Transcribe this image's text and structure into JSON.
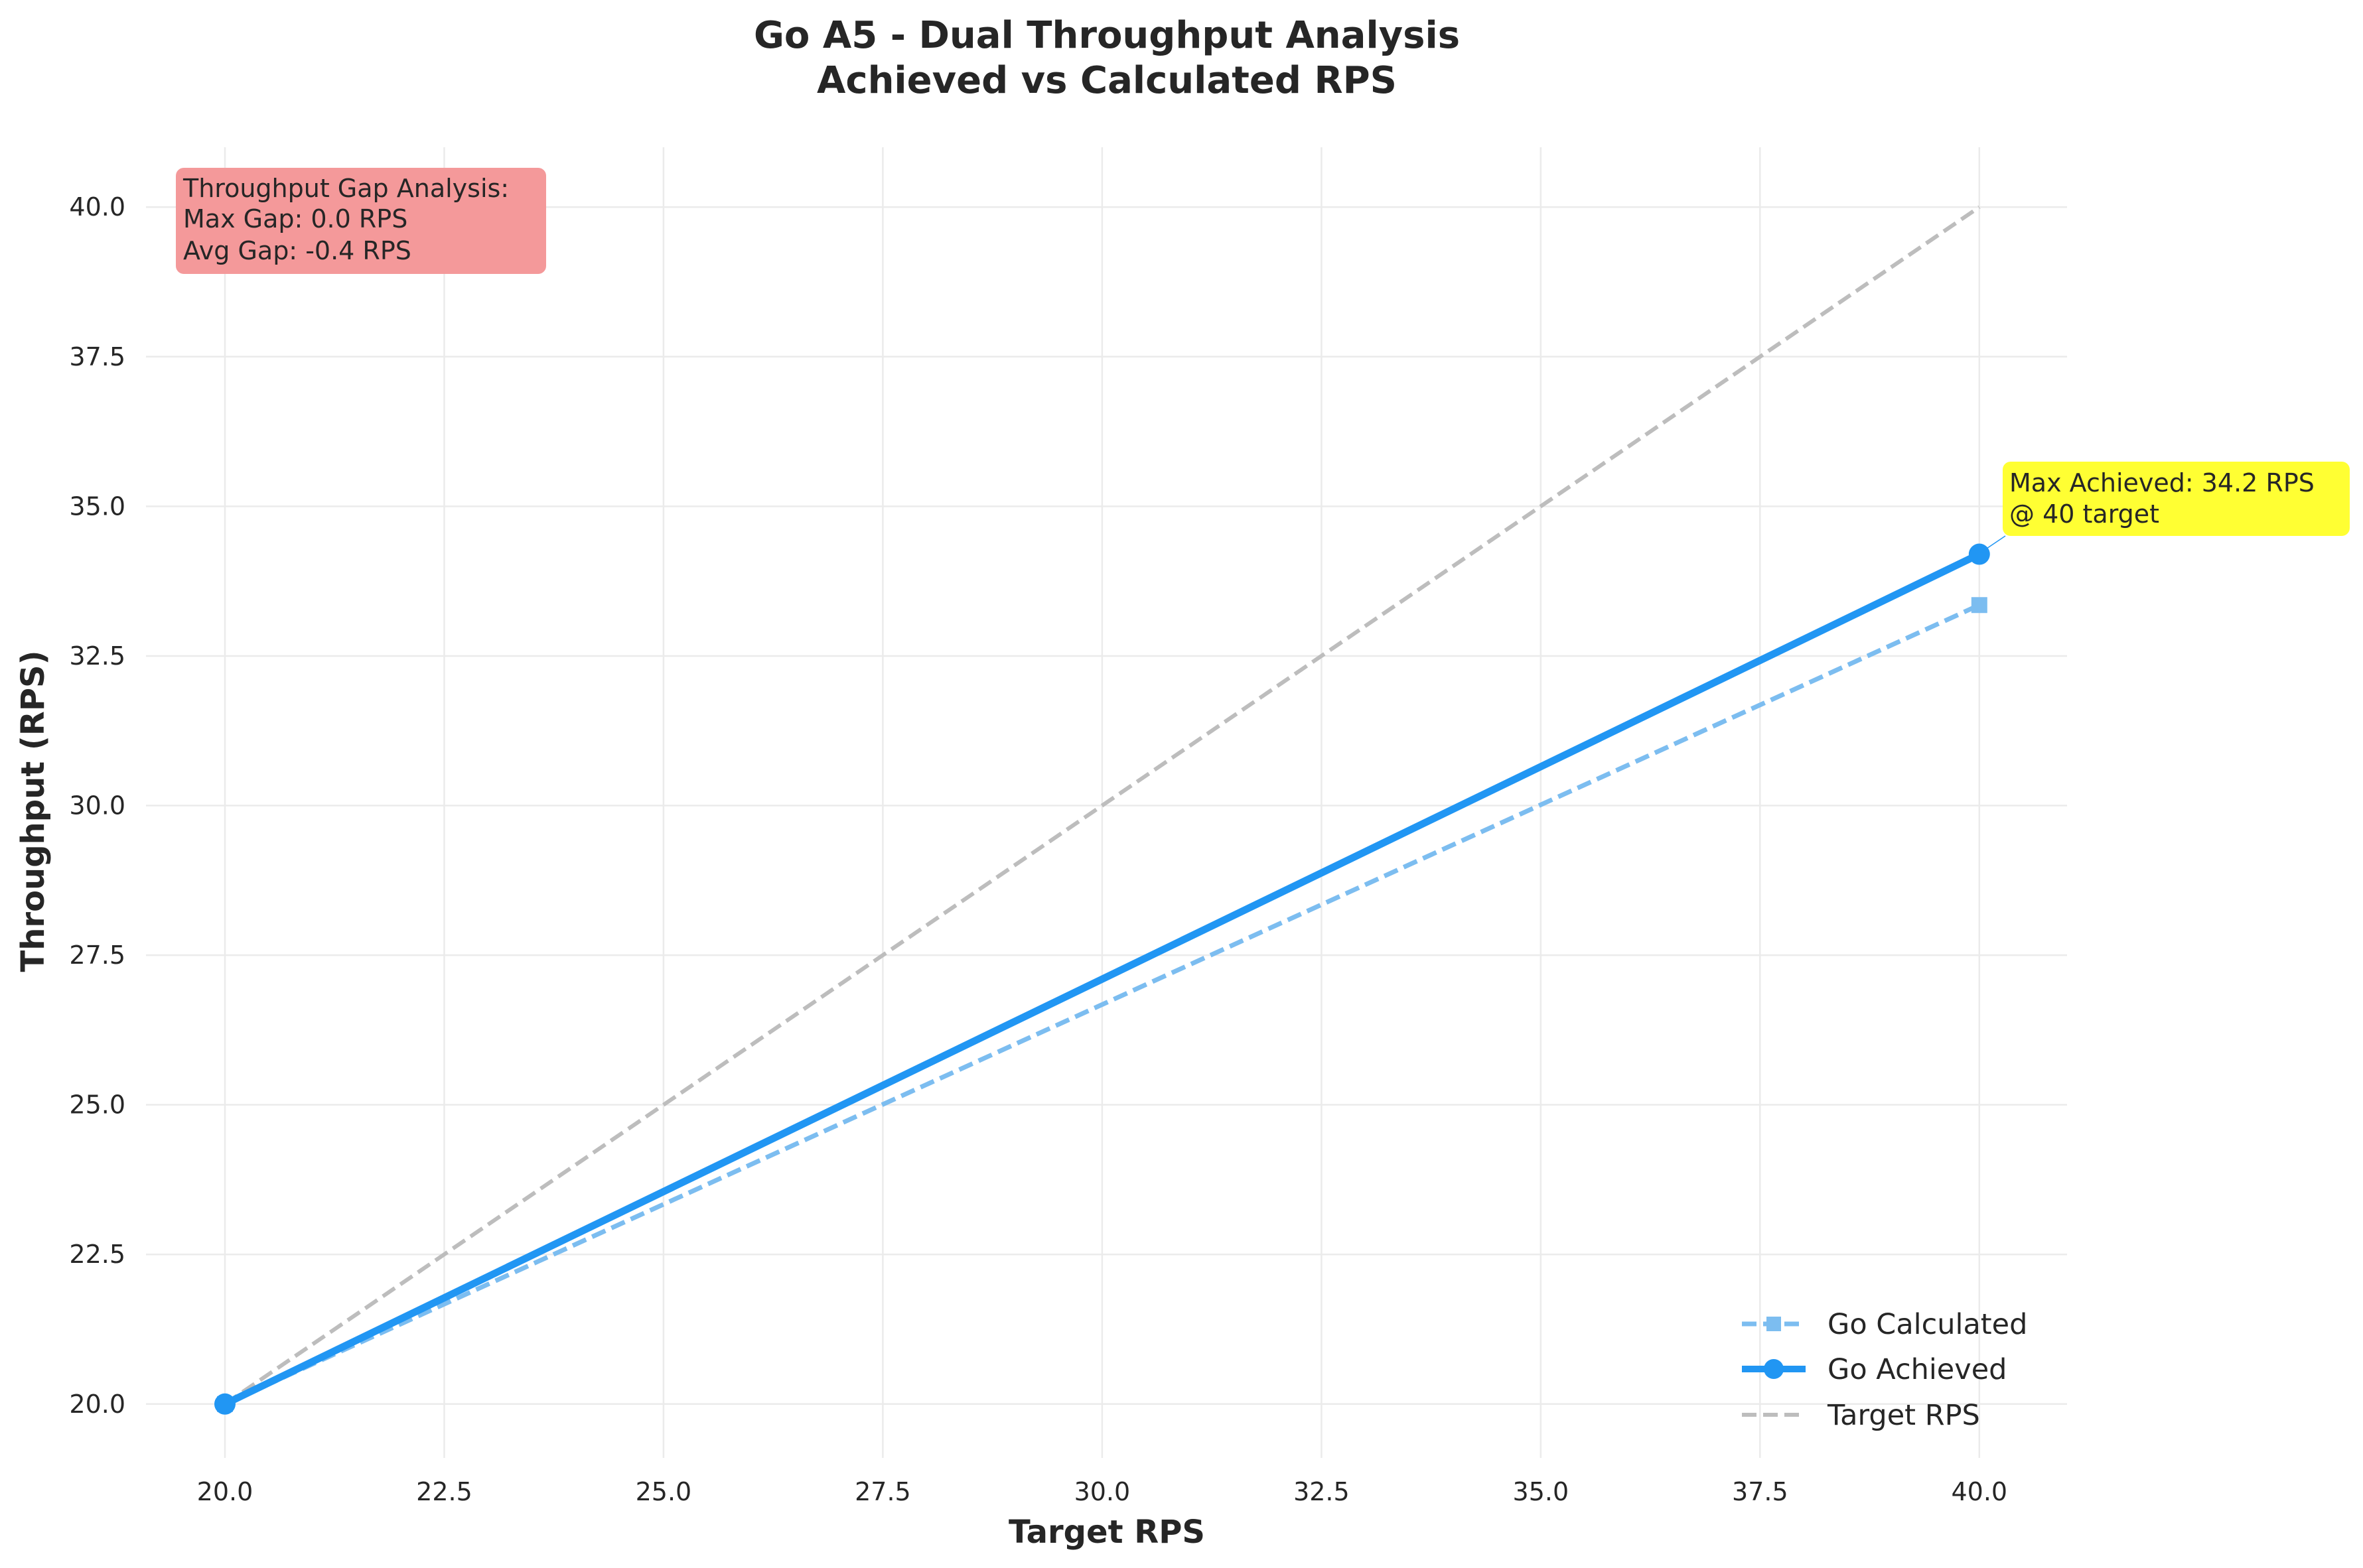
{
  "chart_data": {
    "type": "line",
    "title": "Go A5 - Dual Throughput Analysis",
    "subtitle": "Achieved vs Calculated RPS",
    "xlabel": "Target RPS",
    "ylabel": "Throughput (RPS)",
    "xlim": [
      19.1,
      41.0
    ],
    "ylim": [
      19.1,
      41.0
    ],
    "x_ticks": [
      20.0,
      22.5,
      25.0,
      27.5,
      30.0,
      32.5,
      35.0,
      37.5,
      40.0
    ],
    "y_ticks": [
      20.0,
      22.5,
      25.0,
      27.5,
      30.0,
      32.5,
      35.0,
      37.5,
      40.0
    ],
    "x_tick_labels": [
      "20.0",
      "22.5",
      "25.0",
      "27.5",
      "30.0",
      "32.5",
      "35.0",
      "37.5",
      "40.0"
    ],
    "y_tick_labels": [
      "20.0",
      "22.5",
      "25.0",
      "27.5",
      "30.0",
      "32.5",
      "35.0",
      "37.5",
      "40.0"
    ],
    "grid": true,
    "legend_position": "lower-right",
    "series": [
      {
        "name": "Go Calculated",
        "x": [
          20,
          40
        ],
        "y": [
          20.0,
          33.35
        ],
        "color": "#7cbdf0",
        "style": "dashed",
        "marker": "square"
      },
      {
        "name": "Go Achieved",
        "x": [
          20,
          40
        ],
        "y": [
          20.0,
          34.2
        ],
        "color": "#2196f3",
        "style": "solid",
        "marker": "circle"
      },
      {
        "name": "Target RPS",
        "x": [
          20,
          40
        ],
        "y": [
          20.0,
          40.0
        ],
        "color": "#bdbdbd",
        "style": "dashed",
        "marker": "none"
      }
    ],
    "annotations": {
      "gap_box": {
        "lines": [
          "Throughput Gap Analysis:",
          "Max Gap: 0.0 RPS",
          "Avg Gap: -0.4 RPS"
        ],
        "color": "#f4999a"
      },
      "max_box": {
        "lines": [
          "Max Achieved: 34.2 RPS",
          "@ 40 target"
        ],
        "color": "#ffff33",
        "point": [
          40,
          34.2
        ]
      }
    }
  }
}
